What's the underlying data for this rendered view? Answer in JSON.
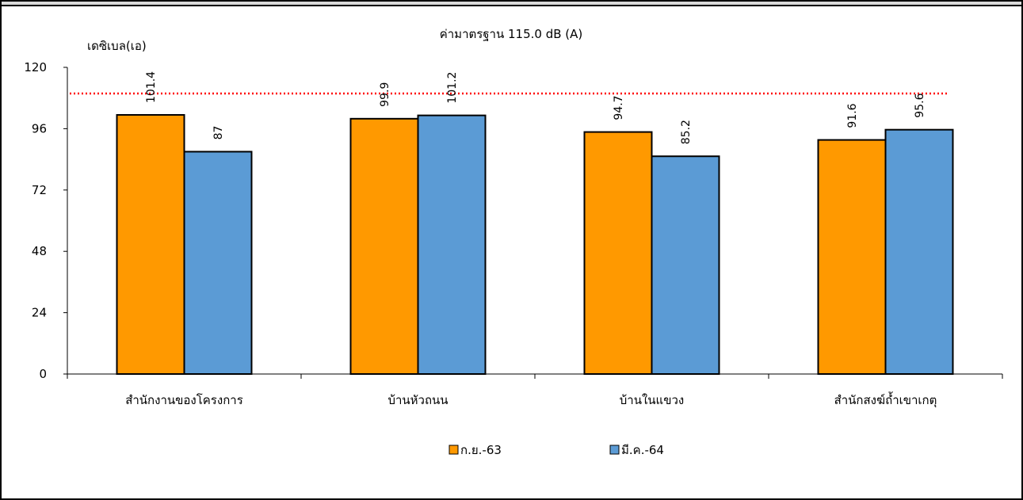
{
  "chart_data": {
    "type": "bar",
    "title": "ค่ามาตรฐาน 115.0 dB (A)",
    "ylabel": "เดซิเบล(เอ)",
    "xlabel": "",
    "ylim": [
      0,
      120
    ],
    "yticks": [
      0,
      24,
      48,
      72,
      96,
      120
    ],
    "categories": [
      "สำนักงานของโครงการ",
      "บ้านหัวถนน",
      "บ้านในแขวง",
      "สำนักสงฆ์ถ้ำเขาเกตุ"
    ],
    "series": [
      {
        "name": "ก.ย.-63",
        "values": [
          101.4,
          99.9,
          94.7,
          91.6
        ],
        "labels": [
          "101.4",
          "99.9",
          "94.7",
          "91.6"
        ],
        "color": "#ff9900"
      },
      {
        "name": "มี.ค.-64",
        "values": [
          87,
          101.2,
          85.2,
          95.6
        ],
        "labels": [
          "87",
          "101.2",
          "85.2",
          "95.6"
        ],
        "color": "#5b9bd5"
      }
    ],
    "reference_line": {
      "color": "#ff0000",
      "style": "dotted"
    },
    "grid": false,
    "legend_position": "bottom-center"
  }
}
